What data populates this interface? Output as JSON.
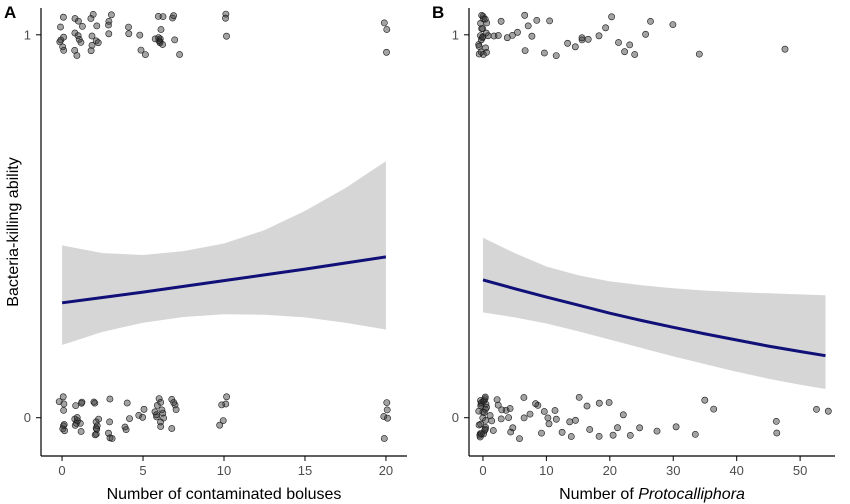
{
  "figure": {
    "ylabel": "Bacteria-killing ability"
  },
  "colors": {
    "fit": "#101078",
    "band": "#c8c8c8",
    "points": "#333333"
  },
  "chart_data": [
    {
      "type": "scatter",
      "panel": "A",
      "xlabel": "Number of contaminated boluses",
      "xlabel_parts": [
        {
          "text": "Number of contaminated boluses",
          "italic": false
        }
      ],
      "ylabel": "Bacteria-killing ability",
      "xlim": [
        -1.3,
        21.3
      ],
      "ylim": [
        -0.1,
        1.07
      ],
      "xticks": [
        0,
        5,
        10,
        15,
        20
      ],
      "yticks": [
        0,
        1
      ],
      "grid": false,
      "points_y0_x": [
        0,
        0,
        0,
        0,
        0,
        0,
        0,
        0,
        1,
        1,
        1,
        1,
        1,
        1,
        1,
        1,
        1,
        1,
        2,
        2,
        2,
        2,
        2,
        2,
        2,
        2,
        2,
        3,
        3,
        3,
        3,
        3,
        4,
        4,
        4,
        4,
        5,
        5,
        5,
        6,
        6,
        6,
        6,
        6,
        6,
        6,
        6,
        6,
        6,
        6,
        7,
        7,
        7,
        7,
        7,
        10,
        10,
        10,
        10,
        10,
        20,
        20,
        20,
        20,
        20
      ],
      "points_y1_x": [
        0,
        0,
        0,
        0,
        0,
        0,
        0,
        1,
        1,
        1,
        1,
        1,
        1,
        1,
        1,
        1,
        2,
        2,
        2,
        2,
        2,
        2,
        2,
        2,
        3,
        3,
        3,
        3,
        4,
        4,
        5,
        5,
        5,
        6,
        6,
        6,
        6,
        6,
        6,
        6,
        6,
        6,
        6,
        7,
        7,
        7,
        7,
        10,
        10,
        10,
        20,
        20,
        20
      ],
      "fit": {
        "x": [
          0,
          2.5,
          5,
          7.5,
          10,
          12.5,
          15,
          17.5,
          20
        ],
        "y": [
          0.3,
          0.314,
          0.328,
          0.343,
          0.358,
          0.373,
          0.388,
          0.404,
          0.42
        ],
        "lower": [
          0.19,
          0.224,
          0.248,
          0.263,
          0.27,
          0.269,
          0.262,
          0.248,
          0.23
        ],
        "upper": [
          0.45,
          0.43,
          0.425,
          0.435,
          0.455,
          0.49,
          0.54,
          0.6,
          0.67
        ]
      }
    },
    {
      "type": "scatter",
      "panel": "B",
      "xlabel": "Number of Protocalliphora",
      "xlabel_parts": [
        {
          "text": "Number of ",
          "italic": false
        },
        {
          "text": "Protocalliphora",
          "italic": true
        }
      ],
      "ylabel": "",
      "xlim": [
        -2.2,
        55.5
      ],
      "ylim": [
        -0.1,
        1.07
      ],
      "xticks": [
        0,
        10,
        20,
        30,
        40,
        50
      ],
      "yticks": [
        0,
        1
      ],
      "grid": false,
      "points_y0_x": [
        0,
        0,
        0,
        0,
        0,
        0,
        0,
        0,
        0,
        0,
        0,
        0,
        0,
        0,
        0,
        0,
        0,
        0,
        0,
        0,
        0,
        0,
        0,
        0,
        0,
        1,
        1,
        1,
        2,
        2,
        2,
        3,
        3,
        3,
        4,
        4,
        5,
        5,
        6,
        6,
        7,
        7,
        8,
        8,
        9,
        9,
        10,
        10,
        11,
        12,
        13,
        13,
        14,
        14,
        15,
        16,
        17,
        18,
        19,
        20,
        21,
        21,
        22,
        23,
        25,
        28,
        31,
        33,
        35,
        37,
        46,
        47,
        53,
        54
      ],
      "points_y1_x": [
        0,
        0,
        0,
        0,
        0,
        0,
        0,
        0,
        0,
        0,
        0,
        0,
        0,
        0,
        0,
        0,
        0,
        0,
        0,
        1,
        1,
        2,
        2,
        3,
        4,
        4,
        5,
        6,
        6,
        7,
        8,
        9,
        10,
        11,
        12,
        13,
        14,
        15,
        16,
        17,
        18,
        19,
        20,
        21,
        22,
        23,
        24,
        25,
        26,
        30,
        34,
        47
      ],
      "fit": {
        "x": [
          0,
          5,
          10,
          15,
          20,
          25,
          30,
          35,
          40,
          45,
          50,
          54
        ],
        "y": [
          0.36,
          0.337,
          0.315,
          0.294,
          0.273,
          0.254,
          0.236,
          0.219,
          0.203,
          0.187,
          0.173,
          0.162
        ],
        "lower": [
          0.275,
          0.262,
          0.246,
          0.226,
          0.204,
          0.182,
          0.16,
          0.14,
          0.12,
          0.102,
          0.086,
          0.075
        ],
        "upper": [
          0.47,
          0.43,
          0.395,
          0.372,
          0.356,
          0.346,
          0.338,
          0.332,
          0.328,
          0.325,
          0.322,
          0.32
        ]
      }
    }
  ]
}
